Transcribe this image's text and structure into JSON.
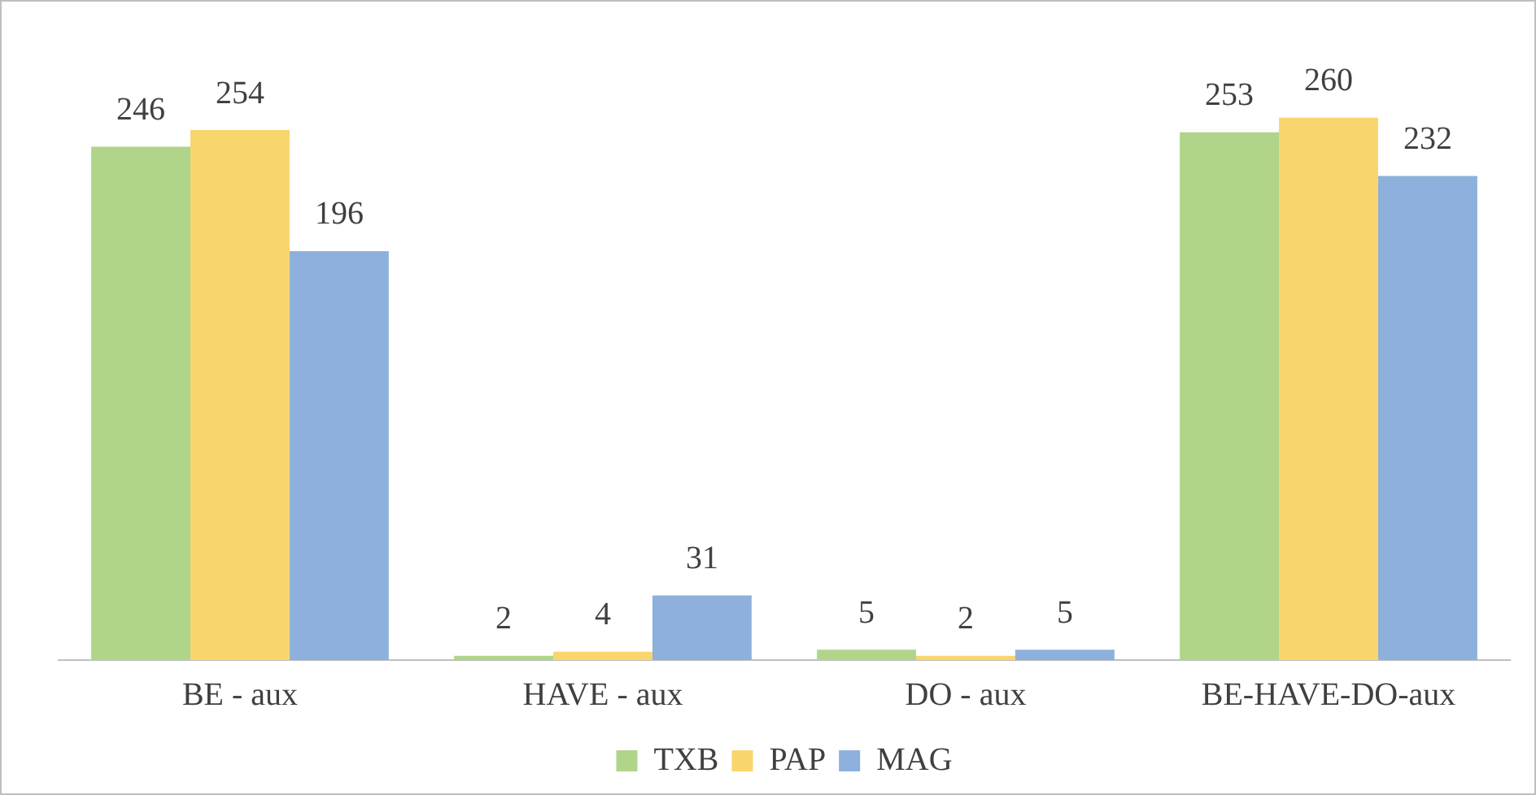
{
  "chart_data": {
    "type": "bar",
    "categories": [
      "BE - aux",
      "HAVE - aux",
      "DO - aux",
      "BE-HAVE-DO-aux"
    ],
    "series": [
      {
        "name": "TXB",
        "color": "#b0d58a",
        "values": [
          246,
          2,
          5,
          253
        ]
      },
      {
        "name": "PAP",
        "color": "#f9d56e",
        "values": [
          254,
          4,
          2,
          260
        ]
      },
      {
        "name": "MAG",
        "color": "#8eb0dc",
        "values": [
          196,
          31,
          5,
          232
        ]
      }
    ],
    "data_labels": true,
    "legend": "bottom",
    "grid": false
  }
}
